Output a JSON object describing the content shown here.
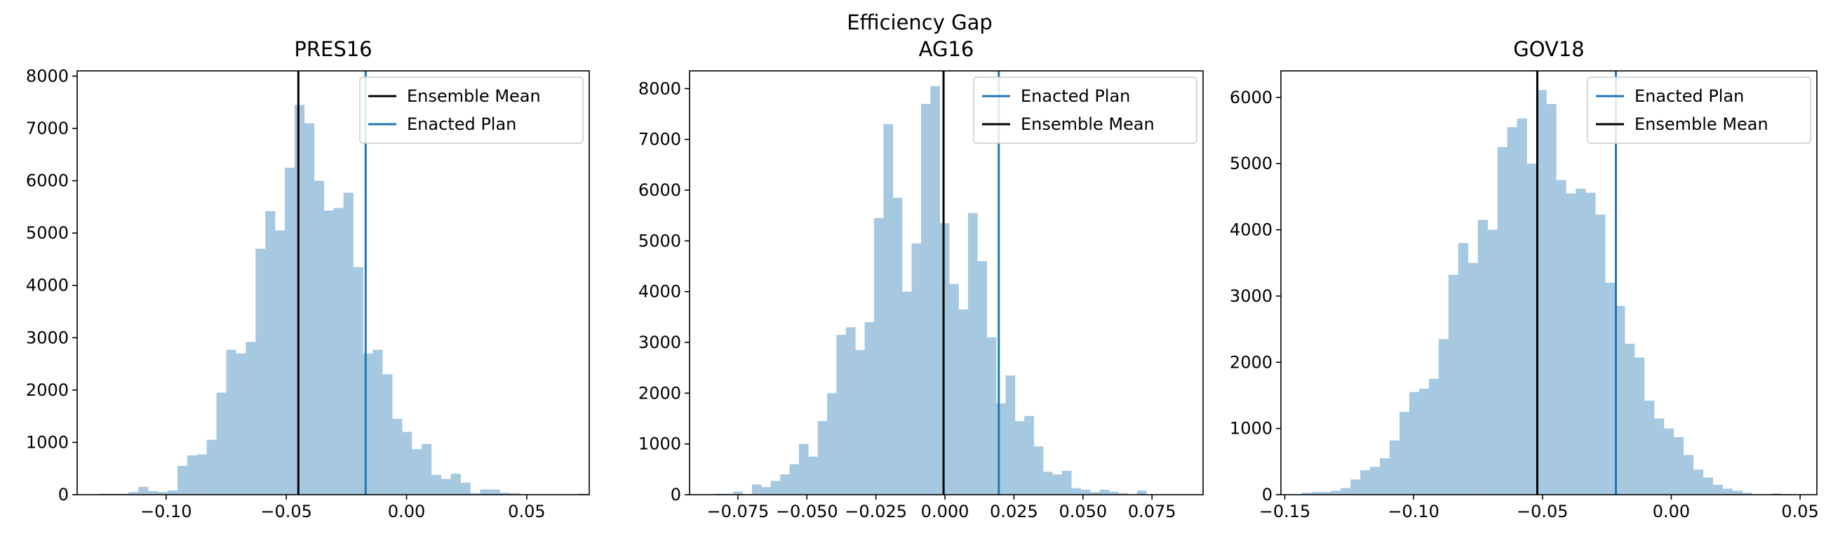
{
  "figure_title": "Efficiency Gap",
  "colors": {
    "histogram": "#a6c8e0",
    "enacted": "#1f77b4",
    "mean": "#000000"
  },
  "chart_data": [
    {
      "type": "bar",
      "title": "PRES16",
      "xlabel": "",
      "ylabel": "",
      "xlim": [
        -0.137,
        0.076
      ],
      "ylim": [
        0,
        8100
      ],
      "xticks": [
        -0.1,
        -0.05,
        0.0,
        0.05
      ],
      "xtick_labels": [
        "−0.10",
        "−0.05",
        "0.00",
        "0.05"
      ],
      "yticks": [
        0,
        1000,
        2000,
        3000,
        4000,
        5000,
        6000,
        7000,
        8000
      ],
      "ytick_labels": [
        "0",
        "1000",
        "2000",
        "3000",
        "4000",
        "5000",
        "6000",
        "7000",
        "8000"
      ],
      "bin_start": -0.1278,
      "bin_width": 0.004062,
      "counts": [
        20,
        20,
        20,
        50,
        150,
        70,
        50,
        80,
        550,
        750,
        770,
        1050,
        1950,
        2770,
        2700,
        2920,
        4700,
        5420,
        5050,
        6250,
        7450,
        7100,
        6000,
        5430,
        5480,
        5770,
        4350,
        2700,
        2770,
        2300,
        1450,
        1200,
        870,
        970,
        380,
        300,
        400,
        230,
        30,
        100,
        100,
        40,
        30,
        0,
        0,
        0,
        0,
        0,
        0,
        20
      ],
      "ensemble_mean": -0.045,
      "enacted_plan": -0.017,
      "legend": [
        "Ensemble Mean",
        "Enacted Plan"
      ],
      "legend_position": "top-right"
    },
    {
      "type": "bar",
      "title": "AG16",
      "xlabel": "",
      "ylabel": "",
      "xlim": [
        -0.0925,
        0.0935
      ],
      "ylim": [
        0,
        8350
      ],
      "xticks": [
        -0.075,
        -0.05,
        -0.025,
        0.0,
        0.025,
        0.05,
        0.075
      ],
      "xtick_labels": [
        "−0.075",
        "−0.050",
        "−0.025",
        "0.000",
        "0.025",
        "0.050",
        "0.075"
      ],
      "yticks": [
        0,
        1000,
        2000,
        3000,
        4000,
        5000,
        6000,
        7000,
        8000
      ],
      "ytick_labels": [
        "0",
        "1000",
        "2000",
        "3000",
        "4000",
        "5000",
        "6000",
        "7000",
        "8000"
      ],
      "bin_start": -0.0835,
      "bin_width": 0.003402,
      "counts": [
        20,
        20,
        60,
        10,
        200,
        150,
        270,
        400,
        600,
        1000,
        750,
        1450,
        2000,
        3150,
        3300,
        2850,
        3400,
        5450,
        7300,
        5850,
        4000,
        4950,
        7700,
        8050,
        5350,
        4150,
        3650,
        5550,
        4600,
        3100,
        1800,
        2350,
        1450,
        1550,
        950,
        450,
        400,
        470,
        130,
        100,
        50,
        100,
        60,
        30,
        0,
        80
      ],
      "ensemble_mean": -0.0005,
      "enacted_plan": 0.0195,
      "legend": [
        "Enacted Plan",
        "Ensemble Mean"
      ],
      "legend_position": "top-right"
    },
    {
      "type": "bar",
      "title": "GOV18",
      "xlabel": "",
      "ylabel": "",
      "xlim": [
        -0.1515,
        0.0565
      ],
      "ylim": [
        0,
        6400
      ],
      "xticks": [
        -0.15,
        -0.1,
        -0.05,
        0.0,
        0.05
      ],
      "xtick_labels": [
        "−0.15",
        "−0.10",
        "−0.05",
        "0.00",
        "0.05"
      ],
      "yticks": [
        0,
        1000,
        2000,
        3000,
        4000,
        5000,
        6000
      ],
      "ytick_labels": [
        "0",
        "1000",
        "2000",
        "3000",
        "4000",
        "5000",
        "6000"
      ],
      "bin_start": -0.1435,
      "bin_width": 0.003801,
      "counts": [
        30,
        40,
        40,
        60,
        100,
        230,
        370,
        420,
        550,
        820,
        1250,
        1550,
        1600,
        1750,
        2350,
        3320,
        3800,
        3500,
        4150,
        4000,
        5250,
        5550,
        5680,
        5000,
        6110,
        5900,
        4750,
        4550,
        4620,
        4560,
        4230,
        3200,
        2850,
        2280,
        2070,
        1420,
        1150,
        1000,
        870,
        600,
        380,
        260,
        150,
        90,
        60,
        30,
        0,
        0,
        20,
        10
      ],
      "ensemble_mean": -0.052,
      "enacted_plan": -0.0215,
      "legend": [
        "Enacted Plan",
        "Ensemble Mean"
      ],
      "legend_position": "top-right"
    }
  ]
}
